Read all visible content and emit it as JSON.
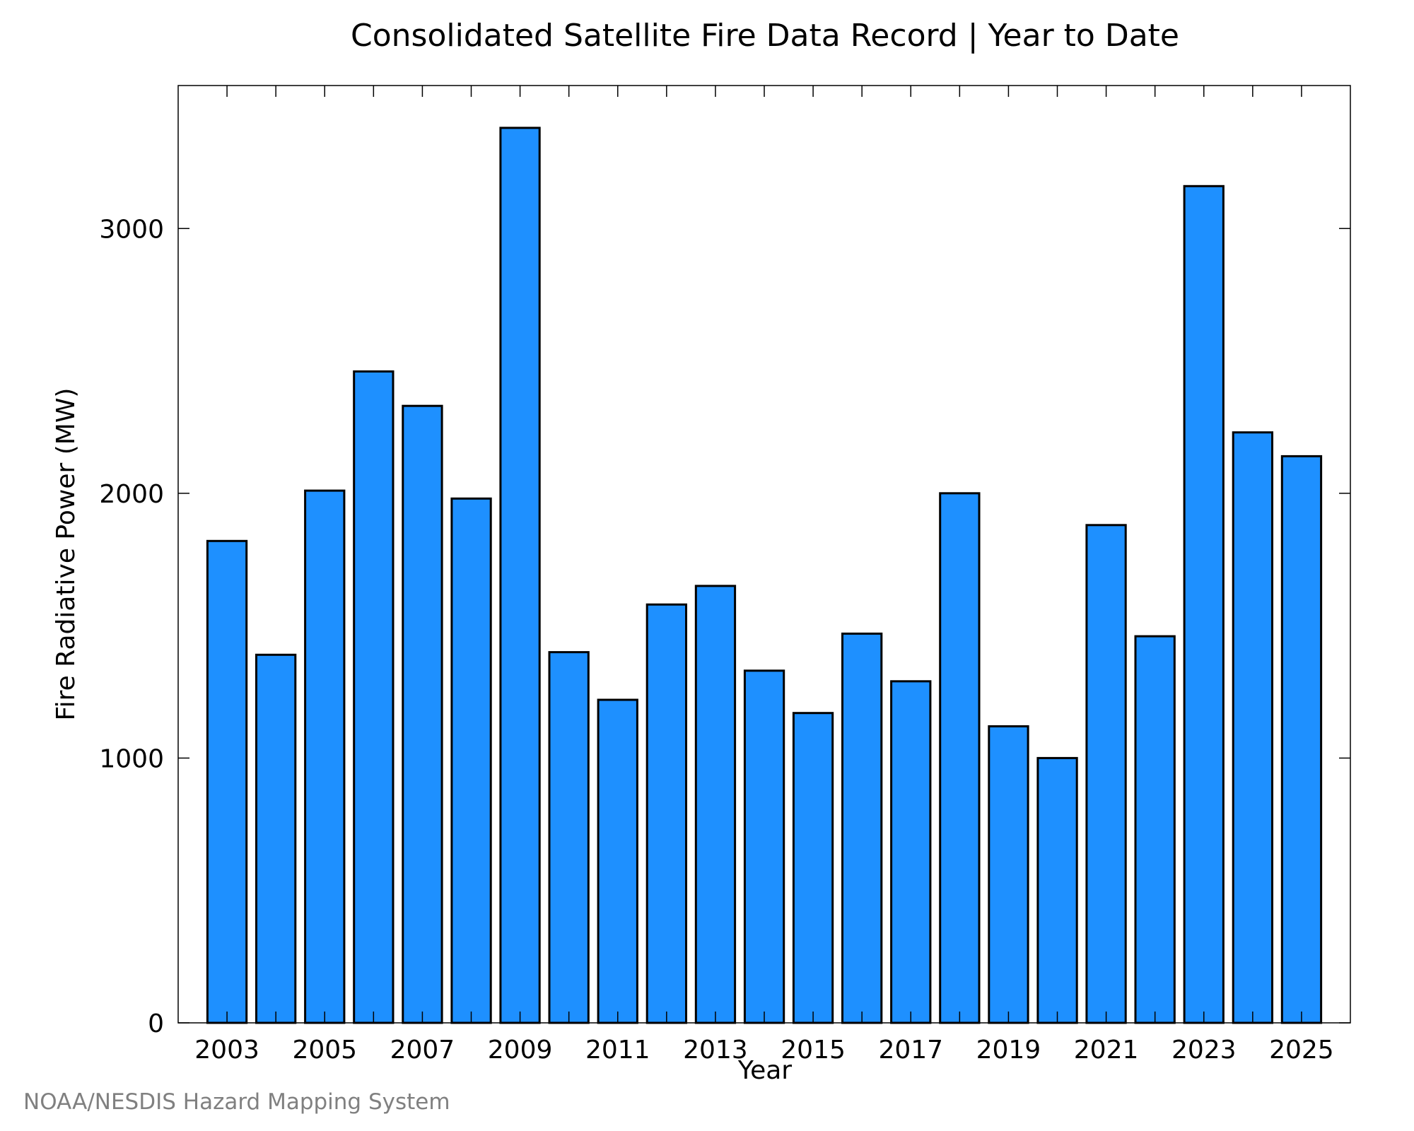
{
  "chart_data": {
    "type": "bar",
    "title": "Consolidated Satellite Fire Data Record | Year to Date",
    "xlabel": "Year",
    "ylabel": "Fire Radiative Power (MW)",
    "categories": [
      "2003",
      "2004",
      "2005",
      "2006",
      "2007",
      "2008",
      "2009",
      "2010",
      "2011",
      "2012",
      "2013",
      "2014",
      "2015",
      "2016",
      "2017",
      "2018",
      "2019",
      "2020",
      "2021",
      "2022",
      "2023",
      "2024",
      "2025"
    ],
    "values": [
      1820,
      1390,
      2010,
      2460,
      2330,
      1980,
      3380,
      1400,
      1220,
      1580,
      1650,
      1330,
      1170,
      1470,
      1290,
      2000,
      1120,
      1000,
      1880,
      1460,
      3160,
      2230,
      2140
    ],
    "ylim": [
      0,
      3540
    ],
    "yticks": [
      0,
      1000,
      2000,
      3000
    ],
    "xtick_labels": [
      "2003",
      "2005",
      "2007",
      "2009",
      "2011",
      "2013",
      "2015",
      "2017",
      "2019",
      "2021",
      "2023",
      "2025"
    ],
    "bar_color": "#1e90ff",
    "grid": false,
    "legend": "none"
  },
  "credit": "NOAA/NESDIS Hazard Mapping System"
}
